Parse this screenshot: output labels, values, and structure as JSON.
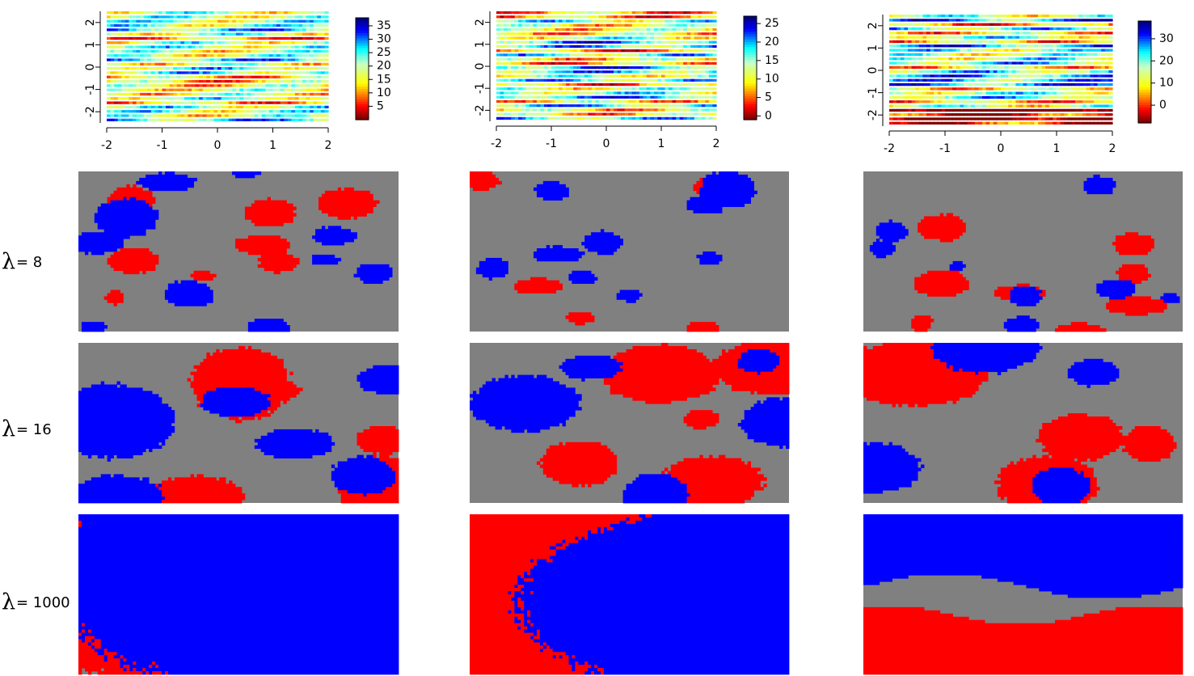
{
  "chart_data": {
    "type": "heatmap",
    "title": "",
    "columns": [
      {
        "heatmap": {
          "x_ticks": [
            "-2",
            "-1",
            "0",
            "1",
            "2"
          ],
          "y_ticks": [
            "2",
            "1",
            "0",
            "-1",
            "-2"
          ],
          "xlim": [
            -2,
            2
          ],
          "ylim": [
            -2.5,
            2.5
          ],
          "colorbar_ticks": [
            "35",
            "30",
            "25",
            "20",
            "15",
            "10",
            "5"
          ],
          "colorbar_range": [
            0,
            38
          ],
          "seed": 11
        },
        "segmentations": [
          {
            "lambda": "8",
            "seed": 101,
            "blue": 12,
            "red": 9,
            "scale": 0.9
          },
          {
            "lambda": "16",
            "seed": 202,
            "blue": 6,
            "red": 5,
            "scale": 2.2
          },
          {
            "lambda": "1000",
            "seed": 303,
            "blue": 1,
            "red": 1,
            "scale": 4.0
          }
        ]
      },
      {
        "heatmap": {
          "x_ticks": [
            "-2",
            "-1",
            "0",
            "1",
            "2"
          ],
          "y_ticks": [
            "2",
            "1",
            "0",
            "-1",
            "-2"
          ],
          "xlim": [
            -2,
            2
          ],
          "ylim": [
            -2.5,
            2.5
          ],
          "colorbar_ticks": [
            "25",
            "20",
            "15",
            "10",
            "5",
            "0"
          ],
          "colorbar_range": [
            -1,
            27
          ],
          "seed": 23
        },
        "segmentations": [
          {
            "lambda": "8",
            "seed": 111,
            "blue": 9,
            "red": 6,
            "scale": 0.8
          },
          {
            "lambda": "16",
            "seed": 212,
            "blue": 5,
            "red": 5,
            "scale": 2.0
          },
          {
            "lambda": "1000",
            "seed": 313,
            "blue": 2,
            "red": 2,
            "scale": 4.8
          }
        ]
      },
      {
        "heatmap": {
          "x_ticks": [
            "-2",
            "-1",
            "0",
            "1",
            "2"
          ],
          "y_ticks": [
            "2",
            "1",
            "0",
            "-1",
            "-2"
          ],
          "xlim": [
            -2,
            2
          ],
          "ylim": [
            -2.5,
            2.5
          ],
          "colorbar_ticks": [
            "30",
            "20",
            "10",
            "0"
          ],
          "colorbar_range": [
            -8,
            38
          ],
          "seed": 37
        },
        "segmentations": [
          {
            "lambda": "8",
            "seed": 121,
            "blue": 8,
            "red": 8,
            "scale": 0.9
          },
          {
            "lambda": "16",
            "seed": 222,
            "blue": 4,
            "red": 4,
            "scale": 2.2
          },
          {
            "lambda": "1000",
            "seed": 323,
            "blue": 1,
            "red": 1,
            "scale": 0
          }
        ]
      }
    ],
    "row_labels": [
      {
        "symbol": "λ",
        "text": "= 8"
      },
      {
        "symbol": "λ",
        "text": "= 16"
      },
      {
        "symbol": "λ",
        "text": "= 1000"
      }
    ],
    "category_colors": {
      "low": "#ff0000",
      "high": "#0000ff",
      "neutral": "#808080"
    }
  }
}
